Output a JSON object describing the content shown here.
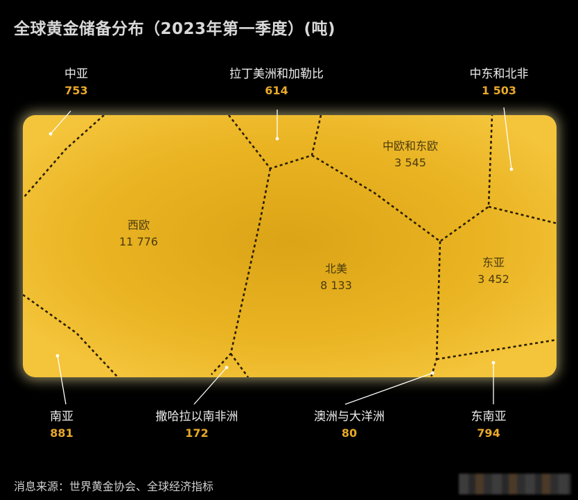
{
  "title": "全球黄金储备分布（2023年第一季度）(吨)",
  "source": "消息来源：世界黄金协会、全球经济指标",
  "colors": {
    "background": "#000000",
    "gold_light": "#f3c23a",
    "gold_dark": "#dca413",
    "value_label": "#e8a92a",
    "border_line": "#2a1d00"
  },
  "chart_data": {
    "type": "voronoi treemap",
    "title": "全球黄金储备分布（2023年第一季度）(吨)",
    "unit": "吨",
    "regions": [
      {
        "name": "西欧",
        "label": "11 776",
        "value": 11776,
        "placement": "inside"
      },
      {
        "name": "北美",
        "label": "8 133",
        "value": 8133,
        "placement": "inside"
      },
      {
        "name": "中欧和东欧",
        "label": "3 545",
        "value": 3545,
        "placement": "inside"
      },
      {
        "name": "东亚",
        "label": "3 452",
        "value": 3452,
        "placement": "inside"
      },
      {
        "name": "中东和北非",
        "label": "1 503",
        "value": 1503,
        "placement": "outside-top"
      },
      {
        "name": "南亚",
        "label": "881",
        "value": 881,
        "placement": "outside-bottom"
      },
      {
        "name": "东南亚",
        "label": "794",
        "value": 794,
        "placement": "outside-bottom"
      },
      {
        "name": "中亚",
        "label": "753",
        "value": 753,
        "placement": "outside-top"
      },
      {
        "name": "拉丁美洲和加勒比",
        "label": "614",
        "value": 614,
        "placement": "outside-top"
      },
      {
        "name": "撒哈拉以南非洲",
        "label": "172",
        "value": 172,
        "placement": "outside-bottom"
      },
      {
        "name": "澳洲与大洋洲",
        "label": "80",
        "value": 80,
        "placement": "outside-bottom"
      }
    ]
  }
}
